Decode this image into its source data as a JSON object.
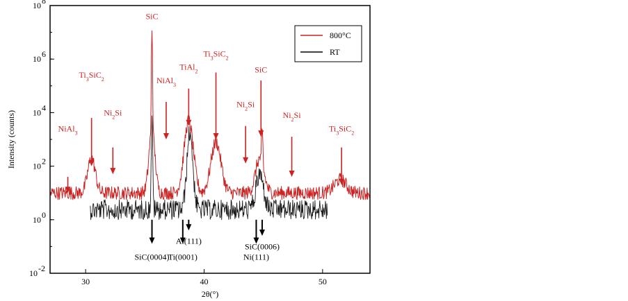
{
  "chart_data": {
    "type": "line",
    "xlabel": "2θ(°)",
    "ylabel": "Intensity (counts)",
    "xlim": [
      27,
      54
    ],
    "ylim_log10": [
      -2,
      8
    ],
    "yscale": "log",
    "x_ticks": [
      30,
      40,
      50
    ],
    "y_ticks": [
      {
        "label": "10",
        "exp": "8",
        "value_log10": 8
      },
      {
        "label": "10",
        "exp": "6",
        "value_log10": 6
      },
      {
        "label": "10",
        "exp": "4",
        "value_log10": 4
      },
      {
        "label": "10",
        "exp": "2",
        "value_log10": 2
      },
      {
        "label": "10",
        "exp": "0",
        "value_log10": 0
      },
      {
        "label": "10",
        "exp": "-2",
        "value_log10": -2
      }
    ],
    "grid": false,
    "legend": {
      "placement": "top-right",
      "entries": [
        {
          "name": "800°C",
          "color": "#cc2222"
        },
        {
          "name": "RT",
          "color": "#000000"
        }
      ]
    },
    "series": [
      {
        "name": "800°C",
        "color": "#cc2222",
        "baseline_log10": 1.0,
        "noise_log10": 0.25,
        "x_range": [
          27,
          54
        ],
        "peaks": [
          {
            "x": 30.5,
            "height_log10": 1.3,
            "width": 0.45
          },
          {
            "x": 35.6,
            "height_log10": 6.2,
            "width": 0.1
          },
          {
            "x": 35.6,
            "height_log10": 2.4,
            "width": 0.35
          },
          {
            "x": 38.7,
            "height_log10": 2.7,
            "width": 0.55
          },
          {
            "x": 41.0,
            "height_log10": 1.9,
            "width": 0.6
          },
          {
            "x": 44.9,
            "height_log10": 2.3,
            "width": 0.12
          },
          {
            "x": 44.7,
            "height_log10": 1.3,
            "width": 0.5
          },
          {
            "x": 51.5,
            "height_log10": 0.5,
            "width": 0.7
          }
        ]
      },
      {
        "name": "RT",
        "color": "#000000",
        "baseline_log10": 0.6,
        "noise_log10": 0.75,
        "x_range": [
          30.4,
          50.4
        ],
        "peaks": [
          {
            "x": 35.6,
            "height_log10": 3.3,
            "width": 0.09
          },
          {
            "x": 38.8,
            "height_log10": 2.9,
            "width": 0.35
          },
          {
            "x": 44.7,
            "height_log10": 1.3,
            "width": 0.45
          }
        ]
      }
    ],
    "annotations": [
      {
        "text": "NiAl",
        "sub": "3",
        "tail": "",
        "x": 28.5,
        "color": "#cc2222",
        "arrow_top_log10": 1.6,
        "arrow_bottom_log10": 1.0,
        "label_log10": 3.3,
        "direction": "down"
      },
      {
        "text": "Ti",
        "sub": "3",
        "tail": "SiC",
        "sub2": "2",
        "x": 30.5,
        "color": "#cc2222",
        "arrow_top_log10": 3.8,
        "arrow_bottom_log10": 2.0,
        "label_log10": 5.3,
        "direction": "down"
      },
      {
        "text": "Ni",
        "sub": "2",
        "tail": "Si",
        "x": 32.3,
        "color": "#cc2222",
        "arrow_top_log10": 2.7,
        "arrow_bottom_log10": 1.7,
        "label_log10": 3.9,
        "direction": "down"
      },
      {
        "text": "SiC",
        "sub": "",
        "tail": "",
        "x": 35.6,
        "color": "#cc2222",
        "arrow_top_log10": null,
        "arrow_bottom_log10": null,
        "label_log10": 7.5,
        "direction": "none"
      },
      {
        "text": "NiAl",
        "sub": "3",
        "tail": "",
        "x": 36.8,
        "color": "#cc2222",
        "arrow_top_log10": 4.4,
        "arrow_bottom_log10": 3.0,
        "label_log10": 5.1,
        "direction": "down"
      },
      {
        "text": "TiAl",
        "sub": "2",
        "tail": "",
        "x": 38.7,
        "color": "#cc2222",
        "arrow_top_log10": 4.9,
        "arrow_bottom_log10": 3.5,
        "label_log10": 5.6,
        "direction": "down"
      },
      {
        "text": "Ti",
        "sub": "3",
        "tail": "SiC",
        "sub2": "2",
        "x": 41.0,
        "color": "#cc2222",
        "arrow_top_log10": 5.5,
        "arrow_bottom_log10": 3.0,
        "label_log10": 6.1,
        "direction": "down"
      },
      {
        "text": "Ni",
        "sub": "2",
        "tail": "Si",
        "x": 43.5,
        "color": "#cc2222",
        "arrow_top_log10": 3.5,
        "arrow_bottom_log10": 2.1,
        "label_log10": 4.2,
        "direction": "down"
      },
      {
        "text": "SiC",
        "sub": "",
        "tail": "",
        "x": 44.8,
        "color": "#cc2222",
        "arrow_top_log10": 5.2,
        "arrow_bottom_log10": 3.1,
        "label_log10": 5.5,
        "direction": "down"
      },
      {
        "text": "Ni",
        "sub": "2",
        "tail": "Si",
        "x": 47.4,
        "color": "#cc2222",
        "arrow_top_log10": 3.1,
        "arrow_bottom_log10": 1.6,
        "label_log10": 3.8,
        "direction": "down"
      },
      {
        "text": "Ti",
        "sub": "3",
        "tail": "SiC",
        "sub2": "2",
        "x": 51.6,
        "color": "#cc2222",
        "arrow_top_log10": 2.7,
        "arrow_bottom_log10": 1.3,
        "label_log10": 3.3,
        "direction": "down"
      },
      {
        "text": "SiC(0004)",
        "x": 35.6,
        "color": "#000000",
        "arrow_top_log10": 0.0,
        "arrow_bottom_log10": -0.9,
        "label_log10": -1.5,
        "direction": "down"
      },
      {
        "text": "Ti(0001)",
        "x": 38.2,
        "color": "#000000",
        "arrow_top_log10": 0.0,
        "arrow_bottom_log10": -0.9,
        "label_log10": -1.5,
        "direction": "down"
      },
      {
        "text": "Al(111)",
        "x": 38.7,
        "color": "#000000",
        "arrow_top_log10": 0.0,
        "arrow_bottom_log10": -0.4,
        "label_log10": -0.9,
        "direction": "down"
      },
      {
        "text": "Ni(111)",
        "x": 44.4,
        "color": "#000000",
        "arrow_top_log10": 0.0,
        "arrow_bottom_log10": -0.9,
        "label_log10": -1.5,
        "direction": "down"
      },
      {
        "text": "SiC(0006)",
        "x": 44.9,
        "color": "#000000",
        "arrow_top_log10": 0.0,
        "arrow_bottom_log10": -0.6,
        "label_log10": -1.1,
        "direction": "down"
      }
    ]
  }
}
